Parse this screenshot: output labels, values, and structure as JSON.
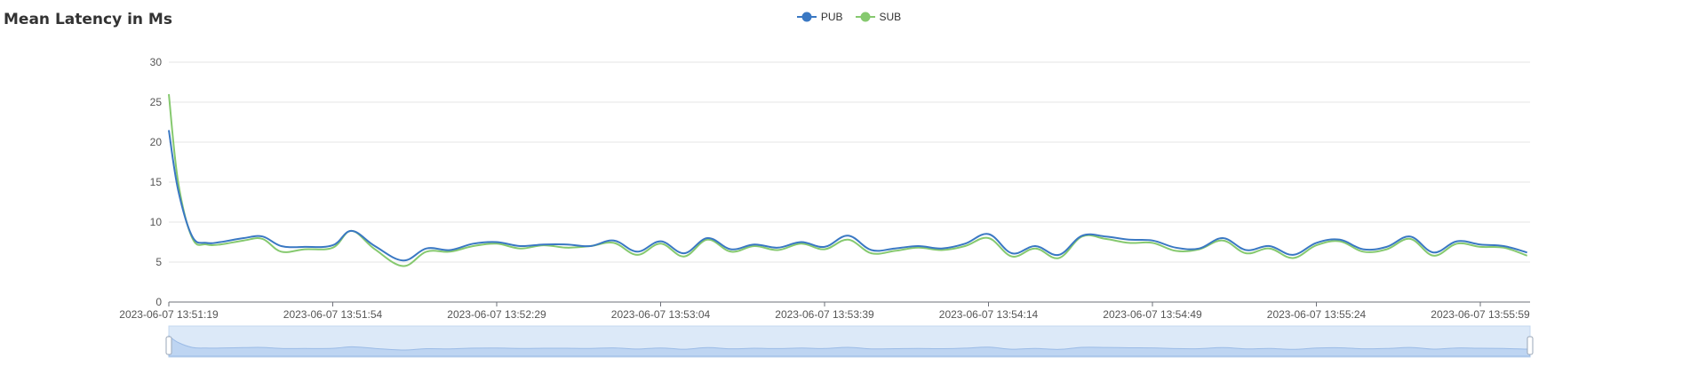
{
  "chart_data": {
    "type": "line",
    "title": "Mean Latency in Ms",
    "xlabel": "",
    "ylabel": "",
    "ylim": [
      0,
      30
    ],
    "yticks": [
      0,
      5,
      10,
      15,
      20,
      25,
      30
    ],
    "x_tick_labels": [
      "2023-06-07 13:51:19",
      "2023-06-07 13:51:54",
      "2023-06-07 13:52:29",
      "2023-06-07 13:53:04",
      "2023-06-07 13:53:39",
      "2023-06-07 13:54:14",
      "2023-06-07 13:54:49",
      "2023-06-07 13:55:24",
      "2023-06-07 13:55:59"
    ],
    "x_range": [
      "2023-06-07 13:51:19",
      "2023-06-07 13:55:59"
    ],
    "grid": true,
    "legend_position": "top-center",
    "series": [
      {
        "name": "PUB",
        "color": "#3a78c3",
        "points": [
          [
            "2023-06-07 13:51:19",
            21.5
          ],
          [
            "2023-06-07 13:51:21",
            14
          ],
          [
            "2023-06-07 13:51:24",
            8.2
          ],
          [
            "2023-06-07 13:51:27",
            7.4
          ],
          [
            "2023-06-07 13:51:30",
            7.5
          ],
          [
            "2023-06-07 13:51:35",
            8.0
          ],
          [
            "2023-06-07 13:51:39",
            8.2
          ],
          [
            "2023-06-07 13:51:43",
            7.0
          ],
          [
            "2023-06-07 13:51:48",
            6.9
          ],
          [
            "2023-06-07 13:51:54",
            7.1
          ],
          [
            "2023-06-07 13:51:58",
            8.9
          ],
          [
            "2023-06-07 13:52:03",
            7.0
          ],
          [
            "2023-06-07 13:52:09",
            5.2
          ],
          [
            "2023-06-07 13:52:14",
            6.7
          ],
          [
            "2023-06-07 13:52:19",
            6.5
          ],
          [
            "2023-06-07 13:52:24",
            7.3
          ],
          [
            "2023-06-07 13:52:29",
            7.5
          ],
          [
            "2023-06-07 13:52:34",
            7.0
          ],
          [
            "2023-06-07 13:52:39",
            7.2
          ],
          [
            "2023-06-07 13:52:44",
            7.2
          ],
          [
            "2023-06-07 13:52:49",
            7.0
          ],
          [
            "2023-06-07 13:52:54",
            7.7
          ],
          [
            "2023-06-07 13:52:59",
            6.3
          ],
          [
            "2023-06-07 13:53:04",
            7.6
          ],
          [
            "2023-06-07 13:53:09",
            6.1
          ],
          [
            "2023-06-07 13:53:14",
            8.0
          ],
          [
            "2023-06-07 13:53:19",
            6.6
          ],
          [
            "2023-06-07 13:53:24",
            7.2
          ],
          [
            "2023-06-07 13:53:29",
            6.8
          ],
          [
            "2023-06-07 13:53:34",
            7.5
          ],
          [
            "2023-06-07 13:53:39",
            6.9
          ],
          [
            "2023-06-07 13:53:44",
            8.3
          ],
          [
            "2023-06-07 13:53:49",
            6.5
          ],
          [
            "2023-06-07 13:53:54",
            6.7
          ],
          [
            "2023-06-07 13:53:59",
            7.0
          ],
          [
            "2023-06-07 13:54:04",
            6.7
          ],
          [
            "2023-06-07 13:54:09",
            7.3
          ],
          [
            "2023-06-07 13:54:14",
            8.5
          ],
          [
            "2023-06-07 13:54:19",
            6.1
          ],
          [
            "2023-06-07 13:54:24",
            7.0
          ],
          [
            "2023-06-07 13:54:29",
            5.9
          ],
          [
            "2023-06-07 13:54:34",
            8.3
          ],
          [
            "2023-06-07 13:54:39",
            8.2
          ],
          [
            "2023-06-07 13:54:44",
            7.8
          ],
          [
            "2023-06-07 13:54:49",
            7.7
          ],
          [
            "2023-06-07 13:54:54",
            6.8
          ],
          [
            "2023-06-07 13:54:59",
            6.7
          ],
          [
            "2023-06-07 13:55:04",
            8.0
          ],
          [
            "2023-06-07 13:55:09",
            6.5
          ],
          [
            "2023-06-07 13:55:14",
            7.0
          ],
          [
            "2023-06-07 13:55:19",
            5.9
          ],
          [
            "2023-06-07 13:55:24",
            7.4
          ],
          [
            "2023-06-07 13:55:29",
            7.8
          ],
          [
            "2023-06-07 13:55:34",
            6.6
          ],
          [
            "2023-06-07 13:55:39",
            6.9
          ],
          [
            "2023-06-07 13:55:44",
            8.2
          ],
          [
            "2023-06-07 13:55:49",
            6.2
          ],
          [
            "2023-06-07 13:55:54",
            7.6
          ],
          [
            "2023-06-07 13:55:59",
            7.2
          ],
          [
            "2023-06-07 13:56:04",
            7.0
          ],
          [
            "2023-06-07 13:56:09",
            6.2
          ]
        ]
      },
      {
        "name": "SUB",
        "color": "#86c96f",
        "points": [
          [
            "2023-06-07 13:51:19",
            26.0
          ],
          [
            "2023-06-07 13:51:21",
            15
          ],
          [
            "2023-06-07 13:51:24",
            8.0
          ],
          [
            "2023-06-07 13:51:27",
            7.2
          ],
          [
            "2023-06-07 13:51:30",
            7.2
          ],
          [
            "2023-06-07 13:51:35",
            7.7
          ],
          [
            "2023-06-07 13:51:39",
            7.9
          ],
          [
            "2023-06-07 13:51:43",
            6.3
          ],
          [
            "2023-06-07 13:51:48",
            6.6
          ],
          [
            "2023-06-07 13:51:54",
            6.8
          ],
          [
            "2023-06-07 13:51:58",
            8.9
          ],
          [
            "2023-06-07 13:52:03",
            6.6
          ],
          [
            "2023-06-07 13:52:09",
            4.5
          ],
          [
            "2023-06-07 13:52:14",
            6.3
          ],
          [
            "2023-06-07 13:52:19",
            6.3
          ],
          [
            "2023-06-07 13:52:24",
            7.0
          ],
          [
            "2023-06-07 13:52:29",
            7.3
          ],
          [
            "2023-06-07 13:52:34",
            6.7
          ],
          [
            "2023-06-07 13:52:39",
            7.1
          ],
          [
            "2023-06-07 13:52:44",
            6.8
          ],
          [
            "2023-06-07 13:52:49",
            7.0
          ],
          [
            "2023-06-07 13:52:54",
            7.4
          ],
          [
            "2023-06-07 13:52:59",
            5.9
          ],
          [
            "2023-06-07 13:53:04",
            7.3
          ],
          [
            "2023-06-07 13:53:09",
            5.7
          ],
          [
            "2023-06-07 13:53:14",
            7.8
          ],
          [
            "2023-06-07 13:53:19",
            6.3
          ],
          [
            "2023-06-07 13:53:24",
            7.0
          ],
          [
            "2023-06-07 13:53:29",
            6.5
          ],
          [
            "2023-06-07 13:53:34",
            7.3
          ],
          [
            "2023-06-07 13:53:39",
            6.6
          ],
          [
            "2023-06-07 13:53:44",
            7.8
          ],
          [
            "2023-06-07 13:53:49",
            6.1
          ],
          [
            "2023-06-07 13:53:54",
            6.4
          ],
          [
            "2023-06-07 13:53:59",
            6.8
          ],
          [
            "2023-06-07 13:54:04",
            6.5
          ],
          [
            "2023-06-07 13:54:09",
            7.0
          ],
          [
            "2023-06-07 13:54:14",
            8.0
          ],
          [
            "2023-06-07 13:54:19",
            5.7
          ],
          [
            "2023-06-07 13:54:24",
            6.7
          ],
          [
            "2023-06-07 13:54:29",
            5.5
          ],
          [
            "2023-06-07 13:54:34",
            8.2
          ],
          [
            "2023-06-07 13:54:39",
            7.9
          ],
          [
            "2023-06-07 13:54:44",
            7.4
          ],
          [
            "2023-06-07 13:54:49",
            7.4
          ],
          [
            "2023-06-07 13:54:54",
            6.4
          ],
          [
            "2023-06-07 13:54:59",
            6.6
          ],
          [
            "2023-06-07 13:55:04",
            7.7
          ],
          [
            "2023-06-07 13:55:09",
            6.1
          ],
          [
            "2023-06-07 13:55:14",
            6.7
          ],
          [
            "2023-06-07 13:55:19",
            5.5
          ],
          [
            "2023-06-07 13:55:24",
            7.1
          ],
          [
            "2023-06-07 13:55:29",
            7.6
          ],
          [
            "2023-06-07 13:55:34",
            6.3
          ],
          [
            "2023-06-07 13:55:39",
            6.6
          ],
          [
            "2023-06-07 13:55:44",
            7.9
          ],
          [
            "2023-06-07 13:55:49",
            5.8
          ],
          [
            "2023-06-07 13:55:54",
            7.3
          ],
          [
            "2023-06-07 13:55:59",
            6.9
          ],
          [
            "2023-06-07 13:56:04",
            6.8
          ],
          [
            "2023-06-07 13:56:09",
            5.8
          ]
        ]
      }
    ]
  }
}
